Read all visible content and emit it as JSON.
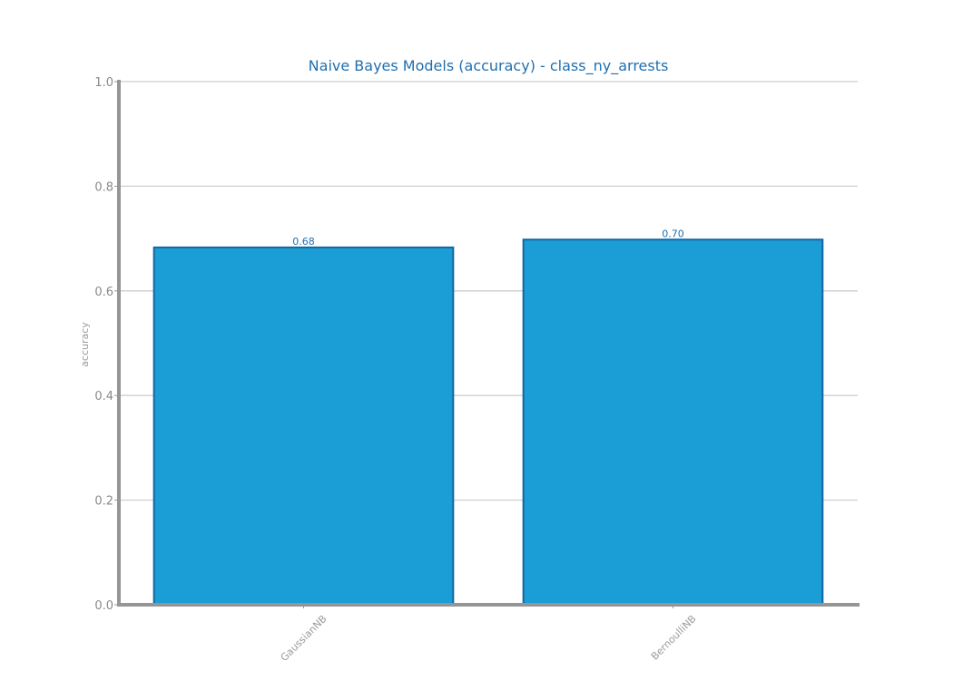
{
  "chart_data": {
    "type": "bar",
    "title": "Naive Bayes Models (accuracy) - class_ny_arrests",
    "xlabel": "",
    "ylabel": "accuracy",
    "categories": [
      "GaussianNB",
      "BernoulliNB"
    ],
    "values": [
      0.683,
      0.698
    ],
    "value_labels": [
      "0.68",
      "0.70"
    ],
    "ylim": [
      0.0,
      1.0
    ],
    "yticks": [
      "0.0",
      "0.2",
      "0.4",
      "0.6",
      "0.8",
      "1.0"
    ],
    "grid": "horizontal",
    "colors": {
      "bar_fill": "#1b9dd6",
      "bar_edge": "#1566a0",
      "title": "#1f6fb0",
      "axis": "#959595",
      "grid": "#cfcfcf",
      "tick_text": "#8a8a8a"
    }
  }
}
